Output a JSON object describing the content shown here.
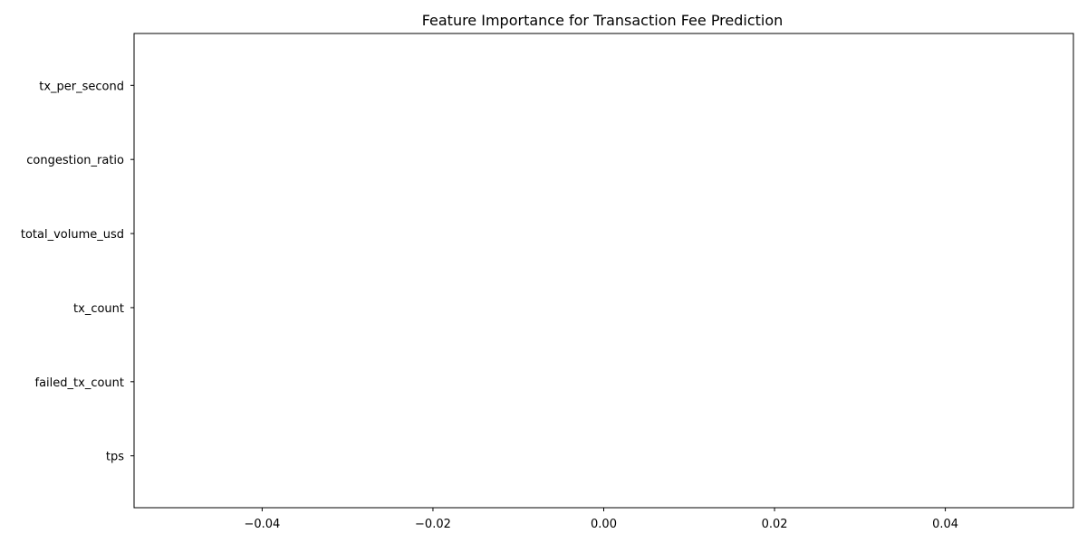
{
  "chart_data": {
    "type": "bar",
    "orientation": "horizontal",
    "title": "Feature Importance for Transaction Fee Prediction",
    "xlabel": "",
    "ylabel": "",
    "categories": [
      "tx_per_second",
      "congestion_ratio",
      "total_volume_usd",
      "tx_count",
      "failed_tx_count",
      "tps"
    ],
    "values": [
      0,
      0,
      0,
      0,
      0,
      0
    ],
    "xlim": [
      -0.055,
      0.055
    ],
    "xticks": [
      -0.04,
      -0.02,
      0.0,
      0.02,
      0.04
    ],
    "xtick_labels": [
      "−0.04",
      "−0.02",
      "0.00",
      "0.02",
      "0.04"
    ],
    "grid": false,
    "bar_color": "#1f77b4"
  }
}
